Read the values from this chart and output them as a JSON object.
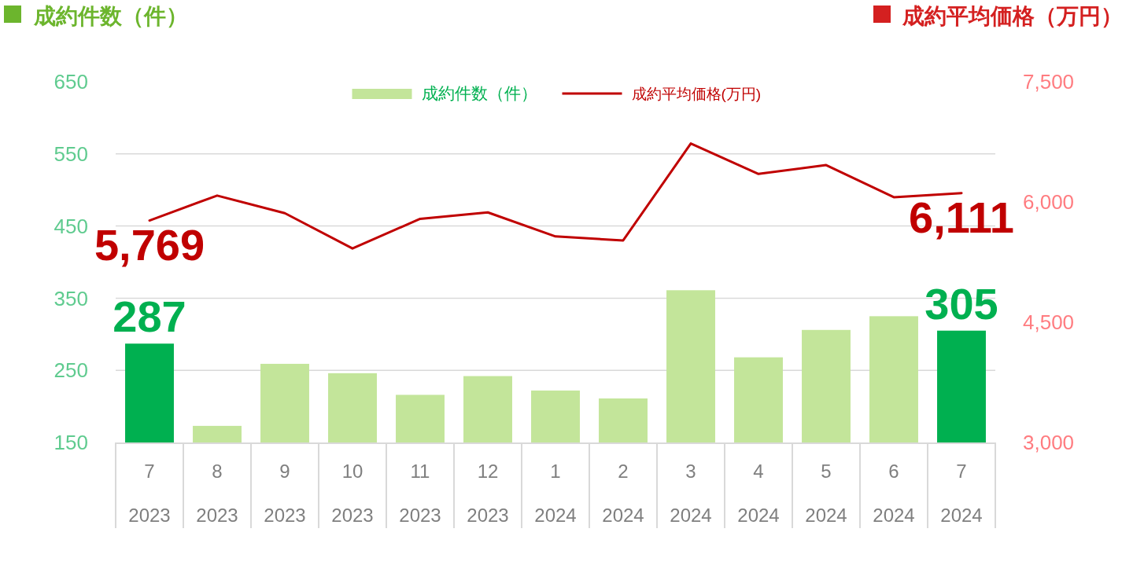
{
  "chart_data": {
    "type": "bar",
    "ylabel": "成約件数（件）",
    "y2label": "成約平均価格（万円）",
    "categories": [
      "7\n2023",
      "8\n2023",
      "9\n2023",
      "10\n2023",
      "11\n2023",
      "12\n2023",
      "1\n2024",
      "2\n2024",
      "3\n2024",
      "4\n2024",
      "5\n2024",
      "6\n2024",
      "7\n2024"
    ],
    "series": [
      {
        "name": "成約件数（件）",
        "color": "#c3e59a",
        "colors": [
          "#00b050",
          "#c3e59a",
          "#c3e59a",
          "#c3e59a",
          "#c3e59a",
          "#c3e59a",
          "#c3e59a",
          "#c3e59a",
          "#c3e59a",
          "#c3e59a",
          "#c3e59a",
          "#c3e59a",
          "#00b050"
        ],
        "values": [
          287,
          173,
          259,
          246,
          216,
          242,
          222,
          211,
          361,
          268,
          306,
          325,
          305
        ],
        "value_labels": [
          "287",
          null,
          null,
          null,
          null,
          null,
          null,
          null,
          null,
          null,
          null,
          null,
          "305"
        ]
      },
      {
        "name": "成約平均価格(万円)",
        "type": "line",
        "axis": "y2",
        "color": "#c00000",
        "values": [
          5769,
          6080,
          5860,
          5420,
          5790,
          5870,
          5570,
          5520,
          6730,
          6350,
          6460,
          6060,
          6111
        ],
        "value_labels": [
          "5,769",
          null,
          null,
          null,
          null,
          null,
          null,
          null,
          null,
          null,
          null,
          null,
          "6,111"
        ]
      }
    ],
    "ylim": [
      150,
      650
    ],
    "yticks": [
      150,
      250,
      350,
      450,
      550,
      650
    ],
    "y2lim": [
      3000,
      7500
    ],
    "y2ticks": [
      {
        "value": 3000,
        "label": "3,000"
      },
      {
        "value": 4500,
        "label": "4,500"
      },
      {
        "value": 6000,
        "label": "6,000"
      },
      {
        "value": 7500,
        "label": "7,500"
      }
    ],
    "grid": "y",
    "legend": "top"
  }
}
